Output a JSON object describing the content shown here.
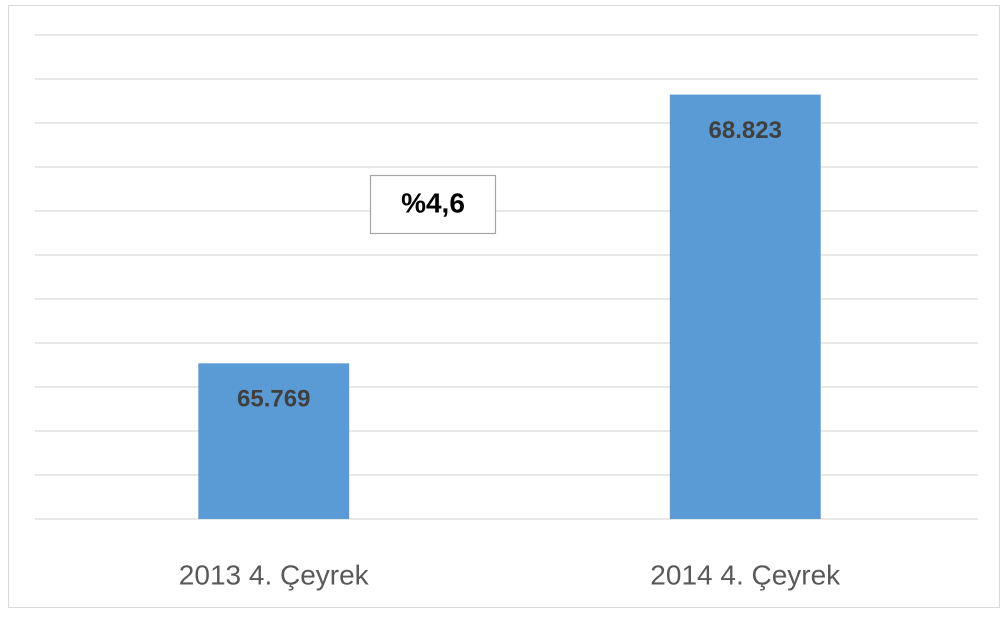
{
  "chart_data": {
    "type": "bar",
    "categories": [
      "2013 4. Çeyrek",
      "2014 4. Çeyrek"
    ],
    "values": [
      65769,
      68823
    ],
    "value_labels": [
      "65.769",
      "68.823"
    ],
    "color": "#5b9bd5",
    "ylim": [
      64000,
      69500
    ],
    "yticks": [
      64000,
      64500,
      65000,
      65500,
      66000,
      66500,
      67000,
      67500,
      68000,
      68500,
      69000,
      69500
    ],
    "show_ytick_labels": false,
    "grid": true,
    "annotation": "%4,6"
  }
}
